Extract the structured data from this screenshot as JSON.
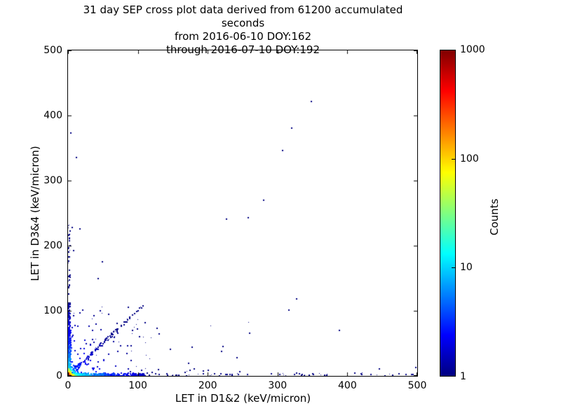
{
  "chart_data": {
    "type": "scatter",
    "title_lines": [
      "31 day SEP cross plot data derived from 61200 accumulated seconds",
      "from 2016-06-10 DOY:162",
      "through 2016-07-10 DOY:192"
    ],
    "xlabel": "LET in D1&2 (keV/micron)",
    "ylabel": "LET in D3&4 (keV/micron)",
    "xlim": [
      0,
      500
    ],
    "ylim": [
      0,
      500
    ],
    "xticks": [
      0,
      100,
      200,
      300,
      400,
      500
    ],
    "yticks": [
      0,
      100,
      200,
      300,
      400,
      500
    ],
    "grid": false,
    "background_color": "#ffffff",
    "base_point_color": "#000080",
    "colorbar": {
      "label": "Counts",
      "scale": "log",
      "min": 1,
      "max": 1000,
      "tick_values": [
        1000,
        100,
        10,
        1
      ],
      "colormap": "jet",
      "gradient_stops": [
        {
          "pos": 0.0,
          "color": "#000080"
        },
        {
          "pos": 0.125,
          "color": "#0000ff"
        },
        {
          "pos": 0.375,
          "color": "#00ffff"
        },
        {
          "pos": 0.625,
          "color": "#ffff00"
        },
        {
          "pos": 0.875,
          "color": "#ff0000"
        },
        {
          "pos": 1.0,
          "color": "#800000"
        }
      ]
    },
    "isolated_points": [
      [
        348,
        421
      ],
      [
        320,
        381
      ],
      [
        307,
        346
      ],
      [
        280,
        270
      ],
      [
        258,
        243
      ],
      [
        227,
        241
      ],
      [
        4,
        373
      ],
      [
        12,
        335
      ],
      [
        6,
        228
      ],
      [
        17,
        226
      ],
      [
        8,
        193
      ],
      [
        49,
        175
      ],
      [
        43,
        150
      ],
      [
        327,
        118
      ],
      [
        316,
        101
      ],
      [
        389,
        70
      ],
      [
        260,
        66
      ],
      [
        222,
        45
      ],
      [
        242,
        28
      ],
      [
        446,
        11
      ],
      [
        498,
        13
      ],
      [
        130,
        10
      ],
      [
        173,
        19
      ],
      [
        128,
        73
      ],
      [
        147,
        41
      ]
    ],
    "clusters": [
      {
        "name": "bottom-edge-dense",
        "n": 500,
        "x": [
          0,
          110
        ],
        "xpow": 2.0,
        "y": [
          0,
          4
        ],
        "ypow": 2.0,
        "heat": {
          "cmax": 15,
          "decay": 35
        }
      },
      {
        "name": "bottom-edge-sparse",
        "n": 70,
        "x": [
          100,
          500
        ],
        "xpow": 1.3,
        "y": [
          0,
          4
        ],
        "ypow": 1.5
      },
      {
        "name": "left-edge-dense",
        "n": 350,
        "x": [
          0,
          4
        ],
        "xpow": 2.0,
        "y": [
          0,
          110
        ],
        "ypow": 1.8,
        "heat": {
          "cmax": 12,
          "decay": 30
        }
      },
      {
        "name": "left-edge-sparse",
        "n": 40,
        "x": [
          0,
          3
        ],
        "xpow": 1.0,
        "y": [
          100,
          235
        ],
        "ypow": 1.2
      },
      {
        "name": "diagonal-band",
        "n": 130,
        "x": [
          2,
          108
        ],
        "xpow": 1.4,
        "diag_spread": 3,
        "heat": {
          "cmax": 6,
          "decay": 30
        }
      },
      {
        "name": "corner-wedge",
        "n": 160,
        "x": [
          0,
          112
        ],
        "xpow": 2.0,
        "y": [
          0,
          106
        ],
        "ypow": 2.0,
        "heat": {
          "cmax": 4,
          "decay": 40
        }
      },
      {
        "name": "hot-corner",
        "n": 150,
        "x": [
          0,
          15
        ],
        "xpow": 2.5,
        "y": [
          0,
          15
        ],
        "ypow": 2.5,
        "heat": {
          "cmax": 500,
          "decay": 4
        }
      },
      {
        "name": "mid-sparse",
        "n": 16,
        "x": [
          100,
          260
        ],
        "xpow": 1.0,
        "y": [
          5,
          85
        ],
        "ypow": 2.2
      }
    ],
    "seed": 1234
  }
}
